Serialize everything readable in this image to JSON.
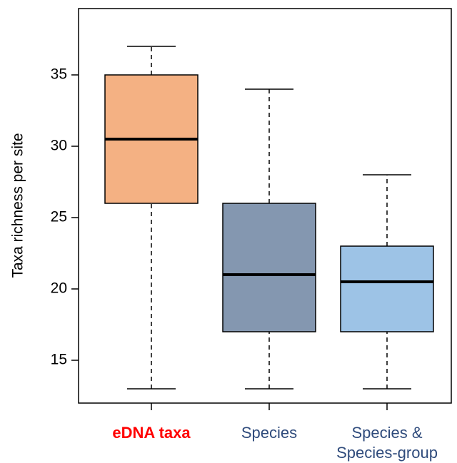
{
  "chart_data": {
    "type": "box",
    "y_label": "Taxa richness per site",
    "categories": [
      "eDNA taxa",
      "Species",
      "Species & Species-group"
    ],
    "label_colors": [
      "#ff0000",
      "#2f4b7c",
      "#2f4b7c"
    ],
    "label_bold": [
      true,
      false,
      false
    ],
    "colors": [
      "#f4b183",
      "#8497b0",
      "#9dc3e6"
    ],
    "boxes": [
      {
        "min": 13,
        "q1": 26,
        "median": 30.5,
        "q3": 35,
        "max": 37
      },
      {
        "min": 13,
        "q1": 17,
        "median": 21,
        "q3": 26,
        "max": 34
      },
      {
        "min": 13,
        "q1": 17,
        "median": 20.5,
        "q3": 23,
        "max": 28
      }
    ],
    "ylim": [
      12,
      39.65
    ],
    "yticks": [
      15,
      20,
      25,
      30,
      35
    ]
  }
}
